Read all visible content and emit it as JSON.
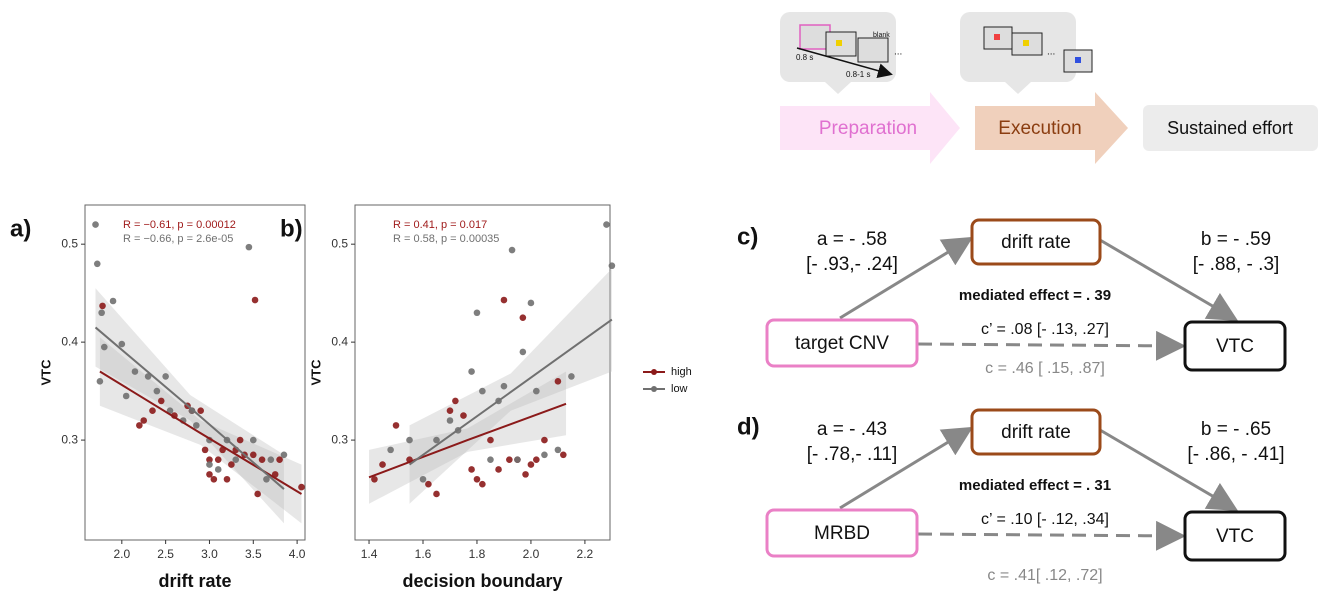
{
  "chart_data": [
    {
      "type": "scatter",
      "panel_label": "a)",
      "x_label": "drift rate",
      "y_label": "VTC",
      "xlim": [
        1.58,
        4.09
      ],
      "ylim": [
        0.198,
        0.54
      ],
      "xticks": [
        {
          "value": 2,
          "label": "2.0"
        },
        2.5,
        {
          "value": 3,
          "label": "3.0"
        },
        3.5,
        {
          "value": 4,
          "label": "4.0"
        }
      ],
      "yticks": [
        0.3,
        0.4,
        0.5
      ],
      "annotations": [
        {
          "text": "R = −0.61, p = 0.00012",
          "color": "#a01c1c"
        },
        {
          "text": "R = −0.66, p = 2.6e-05",
          "color": "#707070"
        }
      ],
      "series": [
        {
          "name": "high",
          "color": "#8b1a1a",
          "x": [
            1.78,
            2.2,
            2.25,
            2.35,
            2.45,
            2.6,
            2.75,
            2.8,
            2.9,
            2.95,
            3.0,
            3.0,
            3.05,
            3.1,
            3.15,
            3.2,
            3.25,
            3.3,
            3.35,
            3.4,
            3.5,
            3.52,
            3.55,
            3.6,
            3.75,
            3.8,
            4.05
          ],
          "values": [
            0.437,
            0.315,
            0.32,
            0.33,
            0.34,
            0.325,
            0.335,
            0.33,
            0.33,
            0.29,
            0.265,
            0.28,
            0.26,
            0.28,
            0.29,
            0.26,
            0.275,
            0.29,
            0.3,
            0.285,
            0.285,
            0.443,
            0.245,
            0.28,
            0.265,
            0.28,
            0.252
          ],
          "fit": {
            "x": [
              1.75,
              2.9,
              4.05
            ],
            "values": [
              0.37,
              0.307,
              0.245
            ],
            "lower": [
              0.335,
              0.295,
              0.215
            ],
            "upper": [
              0.405,
              0.32,
              0.275
            ]
          }
        },
        {
          "name": "low",
          "color": "#707070",
          "x": [
            1.7,
            1.72,
            1.75,
            1.77,
            1.8,
            1.9,
            2.0,
            2.05,
            2.15,
            2.3,
            2.4,
            2.5,
            2.55,
            2.7,
            2.8,
            2.85,
            3.0,
            3.0,
            3.1,
            3.2,
            3.3,
            3.45,
            3.5,
            3.65,
            3.7,
            3.85
          ],
          "values": [
            0.52,
            0.48,
            0.36,
            0.43,
            0.395,
            0.442,
            0.398,
            0.345,
            0.37,
            0.365,
            0.35,
            0.365,
            0.33,
            0.32,
            0.33,
            0.315,
            0.275,
            0.3,
            0.27,
            0.3,
            0.28,
            0.497,
            0.3,
            0.26,
            0.28,
            0.285
          ],
          "fit": {
            "x": [
              1.7,
              2.78,
              3.85
            ],
            "values": [
              0.415,
              0.333,
              0.25
            ],
            "lower": [
              0.375,
              0.32,
              0.215
            ],
            "upper": [
              0.455,
              0.346,
              0.285
            ]
          }
        }
      ]
    },
    {
      "type": "scatter",
      "panel_label": "b)",
      "x_label": "decision boundary",
      "y_label": "VTC",
      "xlim": [
        1.348,
        2.293
      ],
      "ylim": [
        0.198,
        0.54
      ],
      "xticks": [
        1.4,
        1.6,
        1.8,
        {
          "value": 2,
          "label": "2.0"
        },
        2.2
      ],
      "yticks": [
        0.3,
        0.4,
        0.5
      ],
      "legend": "right",
      "annotations": [
        {
          "text": "R = 0.41, p = 0.017",
          "color": "#a01c1c"
        },
        {
          "text": "R = 0.58, p = 0.00035",
          "color": "#707070"
        }
      ],
      "series": [
        {
          "name": "high",
          "color": "#8b1a1a",
          "x": [
            1.42,
            1.45,
            1.5,
            1.55,
            1.62,
            1.65,
            1.7,
            1.72,
            1.75,
            1.78,
            1.8,
            1.82,
            1.85,
            1.88,
            1.9,
            1.92,
            1.95,
            1.97,
            1.98,
            2.0,
            2.02,
            2.05,
            2.1,
            2.12
          ],
          "values": [
            0.26,
            0.275,
            0.315,
            0.28,
            0.255,
            0.245,
            0.33,
            0.34,
            0.325,
            0.27,
            0.26,
            0.255,
            0.3,
            0.27,
            0.443,
            0.28,
            0.28,
            0.425,
            0.265,
            0.275,
            0.28,
            0.3,
            0.36,
            0.285
          ],
          "fit": {
            "x": [
              1.4,
              1.765,
              2.13
            ],
            "values": [
              0.262,
              0.3,
              0.337
            ],
            "lower": [
              0.235,
              0.288,
              0.305
            ],
            "upper": [
              0.29,
              0.312,
              0.37
            ]
          }
        },
        {
          "name": "low",
          "color": "#707070",
          "x": [
            1.48,
            1.55,
            1.6,
            1.65,
            1.7,
            1.73,
            1.78,
            1.8,
            1.82,
            1.85,
            1.88,
            1.9,
            1.93,
            1.95,
            1.97,
            2.0,
            2.02,
            2.05,
            2.1,
            2.15,
            2.28,
            2.3
          ],
          "values": [
            0.29,
            0.3,
            0.26,
            0.3,
            0.32,
            0.31,
            0.37,
            0.43,
            0.35,
            0.28,
            0.34,
            0.355,
            0.494,
            0.28,
            0.39,
            0.44,
            0.35,
            0.285,
            0.29,
            0.365,
            0.52,
            0.478
          ],
          "fit": {
            "x": [
              1.55,
              1.925,
              2.3
            ],
            "values": [
              0.275,
              0.349,
              0.423
            ],
            "lower": [
              0.235,
              0.33,
              0.37
            ],
            "upper": [
              0.315,
              0.368,
              0.475
            ]
          }
        }
      ]
    }
  ],
  "timeline": {
    "thumb_labels": [
      "0.8 s",
      "blank",
      "0.8-1 s",
      "...",
      "..."
    ],
    "steps": [
      "Preparation",
      "Execution",
      "Sustained effort"
    ]
  },
  "mediation": [
    {
      "panel_label": "c)",
      "mediator": "drift rate",
      "predictor": "target CNV",
      "outcome": "VTC",
      "a": "a = - .58",
      "a_ci": "[- .93,- .24]",
      "b": "b = - .59",
      "b_ci": "[- .88, - .3]",
      "mediated": "mediated effect = . 39",
      "c_prime": "c’ = .08 [- .13,  .27]",
      "c": "c = .46  [ .15,  .87]"
    },
    {
      "panel_label": "d)",
      "mediator": "drift rate",
      "predictor": "MRBD",
      "outcome": "VTC",
      "a": "a = - .43",
      "a_ci": "[- .78,- .11]",
      "b": "b = - .65",
      "b_ci": "[- .86, - .41]",
      "mediated": "mediated effect = . 31",
      "c_prime": "c’ =  .10 [- .12,  .34]",
      "c": "c = .41[ .12,  .72]"
    }
  ]
}
